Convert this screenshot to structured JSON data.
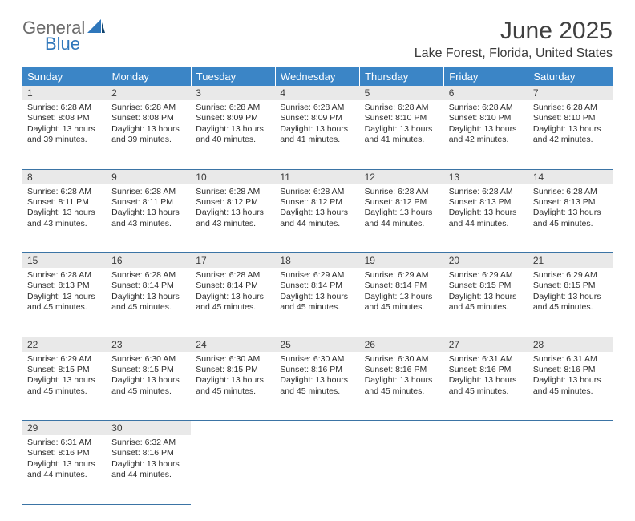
{
  "logo": {
    "word1": "General",
    "word2": "Blue"
  },
  "title": "June 2025",
  "location": "Lake Forest, Florida, United States",
  "colors": {
    "header_bg": "#3b85c6",
    "header_fg": "#ffffff",
    "daynum_bg": "#e9e9e9",
    "rule": "#3b74a5",
    "logo_gray": "#6b6b6b",
    "logo_blue": "#2f77bb",
    "text": "#2e2e2e"
  },
  "day_headers": [
    "Sunday",
    "Monday",
    "Tuesday",
    "Wednesday",
    "Thursday",
    "Friday",
    "Saturday"
  ],
  "weeks": [
    {
      "nums": [
        "1",
        "2",
        "3",
        "4",
        "5",
        "6",
        "7"
      ],
      "cells": [
        {
          "sr": "6:28 AM",
          "ss": "8:08 PM",
          "dl": "13 hours and 39 minutes."
        },
        {
          "sr": "6:28 AM",
          "ss": "8:08 PM",
          "dl": "13 hours and 39 minutes."
        },
        {
          "sr": "6:28 AM",
          "ss": "8:09 PM",
          "dl": "13 hours and 40 minutes."
        },
        {
          "sr": "6:28 AM",
          "ss": "8:09 PM",
          "dl": "13 hours and 41 minutes."
        },
        {
          "sr": "6:28 AM",
          "ss": "8:10 PM",
          "dl": "13 hours and 41 minutes."
        },
        {
          "sr": "6:28 AM",
          "ss": "8:10 PM",
          "dl": "13 hours and 42 minutes."
        },
        {
          "sr": "6:28 AM",
          "ss": "8:10 PM",
          "dl": "13 hours and 42 minutes."
        }
      ]
    },
    {
      "nums": [
        "8",
        "9",
        "10",
        "11",
        "12",
        "13",
        "14"
      ],
      "cells": [
        {
          "sr": "6:28 AM",
          "ss": "8:11 PM",
          "dl": "13 hours and 43 minutes."
        },
        {
          "sr": "6:28 AM",
          "ss": "8:11 PM",
          "dl": "13 hours and 43 minutes."
        },
        {
          "sr": "6:28 AM",
          "ss": "8:12 PM",
          "dl": "13 hours and 43 minutes."
        },
        {
          "sr": "6:28 AM",
          "ss": "8:12 PM",
          "dl": "13 hours and 44 minutes."
        },
        {
          "sr": "6:28 AM",
          "ss": "8:12 PM",
          "dl": "13 hours and 44 minutes."
        },
        {
          "sr": "6:28 AM",
          "ss": "8:13 PM",
          "dl": "13 hours and 44 minutes."
        },
        {
          "sr": "6:28 AM",
          "ss": "8:13 PM",
          "dl": "13 hours and 45 minutes."
        }
      ]
    },
    {
      "nums": [
        "15",
        "16",
        "17",
        "18",
        "19",
        "20",
        "21"
      ],
      "cells": [
        {
          "sr": "6:28 AM",
          "ss": "8:13 PM",
          "dl": "13 hours and 45 minutes."
        },
        {
          "sr": "6:28 AM",
          "ss": "8:14 PM",
          "dl": "13 hours and 45 minutes."
        },
        {
          "sr": "6:28 AM",
          "ss": "8:14 PM",
          "dl": "13 hours and 45 minutes."
        },
        {
          "sr": "6:29 AM",
          "ss": "8:14 PM",
          "dl": "13 hours and 45 minutes."
        },
        {
          "sr": "6:29 AM",
          "ss": "8:14 PM",
          "dl": "13 hours and 45 minutes."
        },
        {
          "sr": "6:29 AM",
          "ss": "8:15 PM",
          "dl": "13 hours and 45 minutes."
        },
        {
          "sr": "6:29 AM",
          "ss": "8:15 PM",
          "dl": "13 hours and 45 minutes."
        }
      ]
    },
    {
      "nums": [
        "22",
        "23",
        "24",
        "25",
        "26",
        "27",
        "28"
      ],
      "cells": [
        {
          "sr": "6:29 AM",
          "ss": "8:15 PM",
          "dl": "13 hours and 45 minutes."
        },
        {
          "sr": "6:30 AM",
          "ss": "8:15 PM",
          "dl": "13 hours and 45 minutes."
        },
        {
          "sr": "6:30 AM",
          "ss": "8:15 PM",
          "dl": "13 hours and 45 minutes."
        },
        {
          "sr": "6:30 AM",
          "ss": "8:16 PM",
          "dl": "13 hours and 45 minutes."
        },
        {
          "sr": "6:30 AM",
          "ss": "8:16 PM",
          "dl": "13 hours and 45 minutes."
        },
        {
          "sr": "6:31 AM",
          "ss": "8:16 PM",
          "dl": "13 hours and 45 minutes."
        },
        {
          "sr": "6:31 AM",
          "ss": "8:16 PM",
          "dl": "13 hours and 45 minutes."
        }
      ]
    },
    {
      "nums": [
        "29",
        "30",
        "",
        "",
        "",
        "",
        ""
      ],
      "cells": [
        {
          "sr": "6:31 AM",
          "ss": "8:16 PM",
          "dl": "13 hours and 44 minutes."
        },
        {
          "sr": "6:32 AM",
          "ss": "8:16 PM",
          "dl": "13 hours and 44 minutes."
        },
        null,
        null,
        null,
        null,
        null
      ]
    }
  ],
  "labels": {
    "sunrise": "Sunrise:",
    "sunset": "Sunset:",
    "daylight": "Daylight:"
  }
}
